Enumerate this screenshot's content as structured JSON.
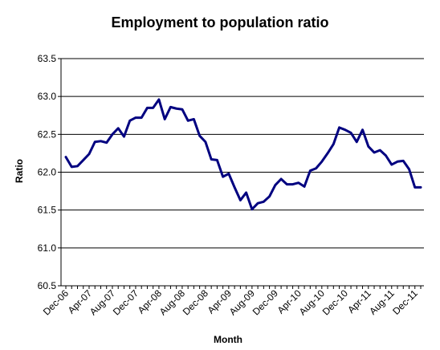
{
  "chart_data": {
    "type": "line",
    "title": "Employment to population ratio",
    "xlabel": "Month",
    "ylabel": "Ratio",
    "ylim": [
      60.5,
      63.5
    ],
    "yticks": [
      "60.5",
      "61.0",
      "61.5",
      "62.0",
      "62.5",
      "63.0",
      "63.5"
    ],
    "xtick_labels": [
      "Dec-06",
      "Apr-07",
      "Aug-07",
      "Dec-07",
      "Apr-08",
      "Aug-08",
      "Dec-08",
      "Apr-09",
      "Aug-09",
      "Dec-09",
      "Apr-10",
      "Aug-10",
      "Dec-10",
      "Apr-11",
      "Aug-11",
      "Dec-11"
    ],
    "grid": "horizontal",
    "line_color": "#000080",
    "series": [
      {
        "x": [
          "Dec-06",
          "Jan-07",
          "Feb-07",
          "Mar-07",
          "Apr-07",
          "May-07",
          "Jun-07",
          "Jul-07",
          "Aug-07",
          "Sep-07",
          "Oct-07",
          "Nov-07",
          "Dec-07",
          "Jan-08",
          "Feb-08",
          "Mar-08",
          "Apr-08",
          "May-08",
          "Jun-08",
          "Jul-08",
          "Aug-08",
          "Sep-08",
          "Oct-08",
          "Nov-08",
          "Dec-08",
          "Jan-09",
          "Feb-09",
          "Mar-09",
          "Apr-09",
          "May-09",
          "Jun-09",
          "Jul-09",
          "Aug-09",
          "Sep-09",
          "Oct-09",
          "Nov-09",
          "Dec-09",
          "Jan-10",
          "Feb-10",
          "Mar-10",
          "Apr-10",
          "May-10",
          "Jun-10",
          "Jul-10",
          "Aug-10",
          "Sep-10",
          "Oct-10",
          "Nov-10",
          "Dec-10",
          "Jan-11",
          "Feb-11",
          "Mar-11",
          "Apr-11",
          "May-11",
          "Jun-11",
          "Jul-11",
          "Aug-11",
          "Sep-11",
          "Oct-11",
          "Nov-11",
          "Dec-11",
          "Jan-12"
        ],
        "values": [
          62.2,
          62.07,
          62.08,
          62.16,
          62.24,
          62.4,
          62.41,
          62.39,
          62.5,
          62.58,
          62.47,
          62.68,
          62.72,
          62.72,
          62.85,
          62.85,
          62.96,
          62.7,
          62.86,
          62.84,
          62.83,
          62.68,
          62.7,
          62.48,
          62.4,
          62.17,
          62.16,
          61.94,
          61.98,
          61.8,
          61.63,
          61.73,
          61.51,
          61.59,
          61.61,
          61.68,
          61.83,
          61.91,
          61.84,
          61.84,
          61.86,
          61.81,
          62.02,
          62.05,
          62.14,
          62.25,
          62.37,
          62.59,
          62.56,
          62.52,
          62.4,
          62.56,
          62.34,
          62.26,
          62.29,
          62.22,
          62.1,
          62.14,
          62.15,
          62.04,
          61.8,
          61.8
        ]
      }
    ]
  }
}
